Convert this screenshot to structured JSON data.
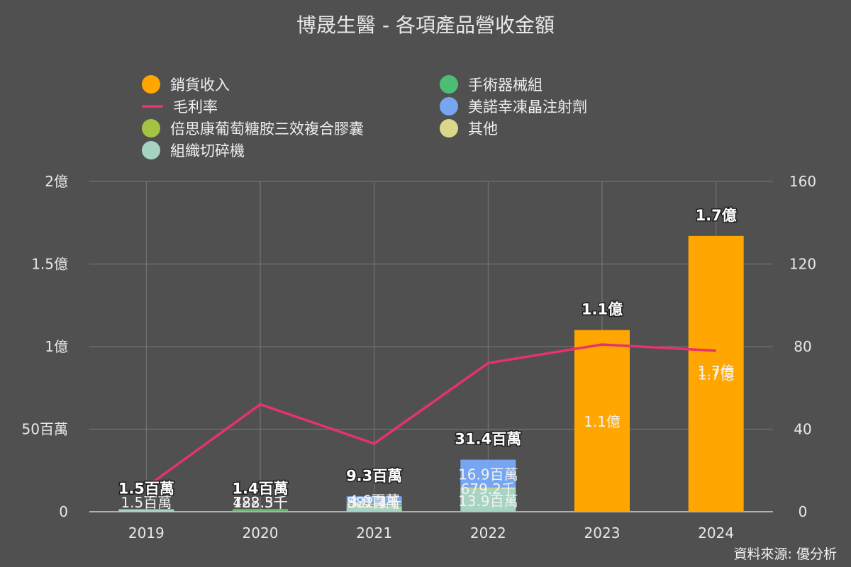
{
  "chart_data": {
    "type": "bar",
    "title": "博晟生醫 - 各項產品營收金額",
    "stacked": true,
    "categories": [
      "2019",
      "2020",
      "2021",
      "2022",
      "2023",
      "2024"
    ],
    "y_left": {
      "ylim": [
        0,
        200000000
      ],
      "ticks": [
        0,
        50000000,
        100000000,
        150000000,
        200000000
      ],
      "tick_labels": [
        "0",
        "50百萬",
        "1億",
        "1.5億",
        "2億"
      ]
    },
    "y_right": {
      "ylim": [
        0,
        160
      ],
      "ticks": [
        0,
        40,
        80,
        120,
        160
      ],
      "tick_labels": [
        "0",
        "40",
        "80",
        "120",
        "160"
      ]
    },
    "grid": true,
    "legend_position": "top",
    "series": [
      {
        "name": "組織切碎機",
        "type": "bar",
        "color": "#a6d3c2",
        "values": [
          1500000,
          0,
          3300000,
          13900000,
          0,
          0
        ],
        "labels": [
          "1.5百萬",
          "",
          "3.3百萬",
          "13.9百萬",
          "",
          ""
        ]
      },
      {
        "name": "倍思康葡萄糖胺三效複合膠囊",
        "type": "bar",
        "color": "#a5c342",
        "values": [
          0,
          500000,
          0,
          0,
          0,
          0
        ],
        "labels": [
          "",
          "488.5千",
          "",
          "",
          "",
          ""
        ]
      },
      {
        "name": "手術器械組",
        "type": "bar",
        "color": "#4cbe74",
        "values": [
          0,
          700000,
          800000,
          0,
          0,
          0
        ],
        "labels": [
          "",
          "723.3千",
          "821.1千",
          "",
          "",
          ""
        ]
      },
      {
        "name": "其他",
        "type": "bar",
        "color": "#dad888",
        "values": [
          0,
          200000,
          600000,
          700000,
          0,
          0
        ],
        "labels": [
          "",
          "182.5千",
          "582.4千",
          "679.2千",
          "",
          ""
        ]
      },
      {
        "name": "美諾幸凍晶注射劑",
        "type": "bar",
        "color": "#76a6f0",
        "values": [
          0,
          0,
          4600000,
          16900000,
          0,
          0
        ],
        "labels": [
          "",
          "",
          "4.6百萬",
          "16.9百萬",
          "",
          ""
        ]
      },
      {
        "name": "銷貨收入",
        "type": "bar",
        "color": "#ffa600",
        "values": [
          0,
          0,
          0,
          0,
          110000000,
          167000000
        ],
        "labels": [
          "",
          "",
          "",
          "",
          "1.1億",
          "1.7億"
        ]
      },
      {
        "name": "毛利率",
        "type": "line",
        "axis": "right",
        "color": "#e5336c",
        "values": [
          12,
          52,
          33,
          72,
          81,
          78
        ]
      }
    ],
    "totals": [
      "1.5百萬",
      "1.4百萬",
      "9.3百萬",
      "31.4百萬",
      "1.1億",
      "1.7億"
    ],
    "inline_labels": [
      "",
      "",
      "",
      "",
      "",
      "1.7億"
    ]
  },
  "legend": [
    {
      "name": "銷貨收入",
      "marker": "dot",
      "color": "#ffa600"
    },
    {
      "name": "手術器械組",
      "marker": "dot",
      "color": "#4cbe74"
    },
    {
      "name": "毛利率",
      "marker": "line",
      "color": "#e5336c"
    },
    {
      "name": "美諾幸凍晶注射劑",
      "marker": "dot",
      "color": "#76a6f0"
    },
    {
      "name": "倍思康葡萄糖胺三效複合膠囊",
      "marker": "dot",
      "color": "#a5c342"
    },
    {
      "name": "其他",
      "marker": "dot",
      "color": "#dad888"
    },
    {
      "name": "組織切碎機",
      "marker": "dot",
      "color": "#a6d3c2"
    }
  ],
  "source": "資料來源: 優分析"
}
